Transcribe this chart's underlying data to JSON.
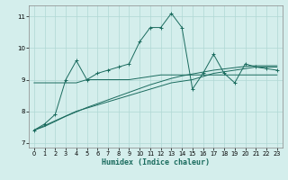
{
  "xlabel": "Humidex (Indice chaleur)",
  "bg_color": "#d4eeec",
  "grid_color": "#b0d8d4",
  "line_color": "#1a6b5e",
  "xlim": [
    -0.5,
    23.5
  ],
  "ylim": [
    6.85,
    11.35
  ],
  "xticks": [
    0,
    1,
    2,
    3,
    4,
    5,
    6,
    7,
    8,
    9,
    10,
    11,
    12,
    13,
    14,
    15,
    16,
    17,
    18,
    19,
    20,
    21,
    22,
    23
  ],
  "yticks": [
    7,
    8,
    9,
    10,
    11
  ],
  "series1_x": [
    0,
    1,
    2,
    3,
    4,
    5,
    6,
    7,
    8,
    9,
    10,
    11,
    12,
    13,
    14,
    15,
    16,
    17,
    18,
    19,
    20,
    21,
    22,
    23
  ],
  "series1_y": [
    7.4,
    7.6,
    7.9,
    9.0,
    9.6,
    9.0,
    9.2,
    9.3,
    9.4,
    9.5,
    10.2,
    10.65,
    10.65,
    11.1,
    10.65,
    8.7,
    9.2,
    9.8,
    9.2,
    8.9,
    9.5,
    9.4,
    9.35,
    9.3
  ],
  "series2_x": [
    0,
    1,
    2,
    3,
    4,
    5,
    6,
    7,
    8,
    9,
    10,
    11,
    12,
    13,
    14,
    15,
    16,
    17,
    18,
    19,
    20,
    21,
    22,
    23
  ],
  "series2_y": [
    8.9,
    8.9,
    8.9,
    8.9,
    8.9,
    9.0,
    9.0,
    9.0,
    9.0,
    9.0,
    9.05,
    9.1,
    9.15,
    9.15,
    9.15,
    9.15,
    9.15,
    9.15,
    9.15,
    9.15,
    9.15,
    9.15,
    9.15,
    9.15
  ],
  "series3_x": [
    0,
    1,
    2,
    3,
    4,
    5,
    6,
    7,
    8,
    9,
    10,
    11,
    12,
    13,
    14,
    15,
    16,
    17,
    18,
    19,
    20,
    21,
    22,
    23
  ],
  "series3_y": [
    7.4,
    7.55,
    7.7,
    7.85,
    8.0,
    8.1,
    8.2,
    8.3,
    8.4,
    8.5,
    8.6,
    8.7,
    8.8,
    8.9,
    8.95,
    9.0,
    9.1,
    9.2,
    9.25,
    9.3,
    9.35,
    9.4,
    9.4,
    9.4
  ],
  "series4_x": [
    0,
    1,
    2,
    3,
    4,
    5,
    6,
    7,
    8,
    9,
    10,
    11,
    12,
    13,
    14,
    15,
    16,
    17,
    18,
    19,
    20,
    21,
    22,
    23
  ],
  "series4_y": [
    7.4,
    7.52,
    7.68,
    7.84,
    7.98,
    8.12,
    8.24,
    8.36,
    8.48,
    8.6,
    8.72,
    8.84,
    8.94,
    9.04,
    9.12,
    9.18,
    9.24,
    9.3,
    9.34,
    9.38,
    9.42,
    9.44,
    9.44,
    9.44
  ]
}
